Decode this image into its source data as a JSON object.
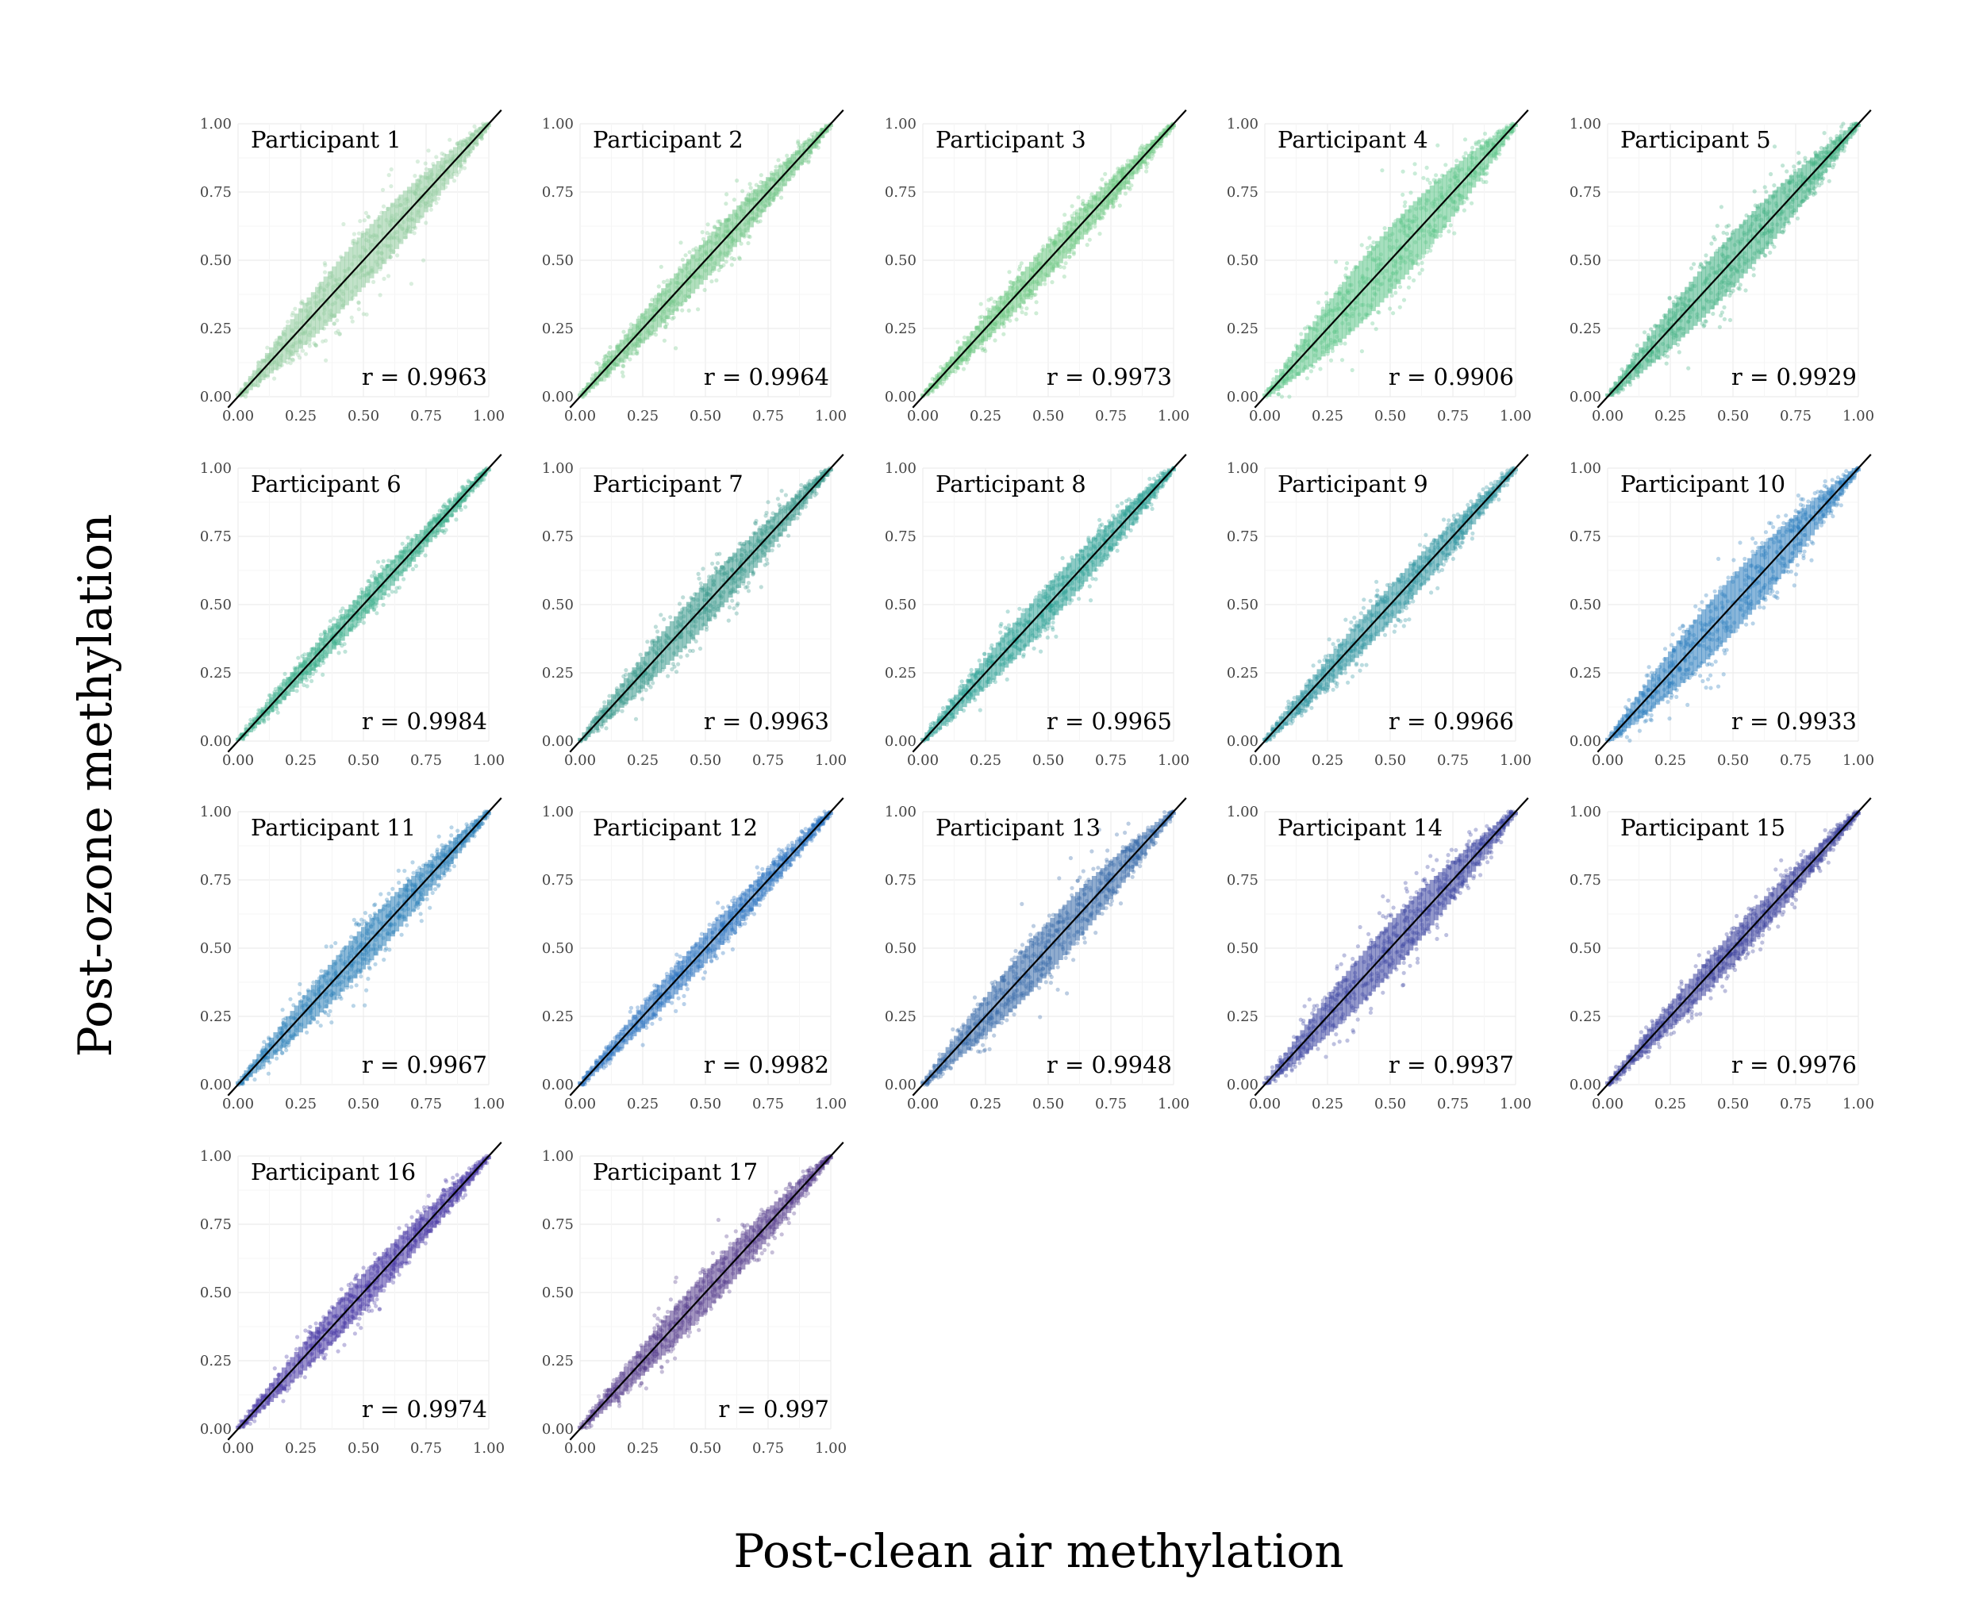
{
  "figure": {
    "xlabel": "Post-clean air methylation",
    "ylabel": "Post-ozone methylation",
    "ticks": [
      "0.00",
      "0.25",
      "0.50",
      "0.75",
      "1.00"
    ]
  },
  "chart_data": {
    "type": "scatter",
    "xlabel": "Post-clean air methylation",
    "ylabel": "Post-ozone methylation",
    "xlim": [
      0,
      1
    ],
    "ylim": [
      0,
      1
    ],
    "tick_values": [
      0,
      0.25,
      0.5,
      0.75,
      1.0
    ],
    "grid": true,
    "reference_line": {
      "slope": 1,
      "intercept": 0
    },
    "panels": [
      {
        "title": "Participant 1",
        "annotation": "r = 0.9963",
        "r": 0.9963,
        "color": "#8fca9c",
        "spread": 0.16
      },
      {
        "title": "Participant 2",
        "annotation": "r = 0.9964",
        "r": 0.9964,
        "color": "#71c586",
        "spread": 0.11
      },
      {
        "title": "Participant 3",
        "annotation": "r = 0.9973",
        "r": 0.9973,
        "color": "#6cc782",
        "spread": 0.09
      },
      {
        "title": "Participant 4",
        "annotation": "r = 0.9906",
        "r": 0.9906,
        "color": "#5cc589",
        "spread": 0.2
      },
      {
        "title": "Participant 5",
        "annotation": "r = 0.9929",
        "r": 0.9929,
        "color": "#42b183",
        "spread": 0.16
      },
      {
        "title": "Participant 6",
        "annotation": "r = 0.9984",
        "r": 0.9984,
        "color": "#3cae8c",
        "spread": 0.07
      },
      {
        "title": "Participant 7",
        "annotation": "r = 0.9963",
        "r": 0.9963,
        "color": "#3a998c",
        "spread": 0.12
      },
      {
        "title": "Participant 8",
        "annotation": "r = 0.9965",
        "r": 0.9965,
        "color": "#2ea196",
        "spread": 0.11
      },
      {
        "title": "Participant 9",
        "annotation": "r = 0.9966",
        "r": 0.9966,
        "color": "#3296a1",
        "spread": 0.1
      },
      {
        "title": "Participant 10",
        "annotation": "r = 0.9933",
        "r": 0.9933,
        "color": "#2a7bbd",
        "spread": 0.17
      },
      {
        "title": "Participant 11",
        "annotation": "r = 0.9967",
        "r": 0.9967,
        "color": "#2b80b8",
        "spread": 0.12
      },
      {
        "title": "Participant 12",
        "annotation": "r = 0.9982",
        "r": 0.9982,
        "color": "#2c72c0",
        "spread": 0.08
      },
      {
        "title": "Participant 13",
        "annotation": "r = 0.9948",
        "r": 0.9948,
        "color": "#3467a8",
        "spread": 0.15
      },
      {
        "title": "Participant 14",
        "annotation": "r = 0.9937",
        "r": 0.9937,
        "color": "#3b44a0",
        "spread": 0.15
      },
      {
        "title": "Participant 15",
        "annotation": "r = 0.9976",
        "r": 0.9976,
        "color": "#3a3f9c",
        "spread": 0.09
      },
      {
        "title": "Participant 16",
        "annotation": "r = 0.9974",
        "r": 0.9974,
        "color": "#4736a4",
        "spread": 0.1
      },
      {
        "title": "Participant 17",
        "annotation": "r = 0.997",
        "r": 0.997,
        "color": "#563d8c",
        "spread": 0.11
      }
    ]
  }
}
